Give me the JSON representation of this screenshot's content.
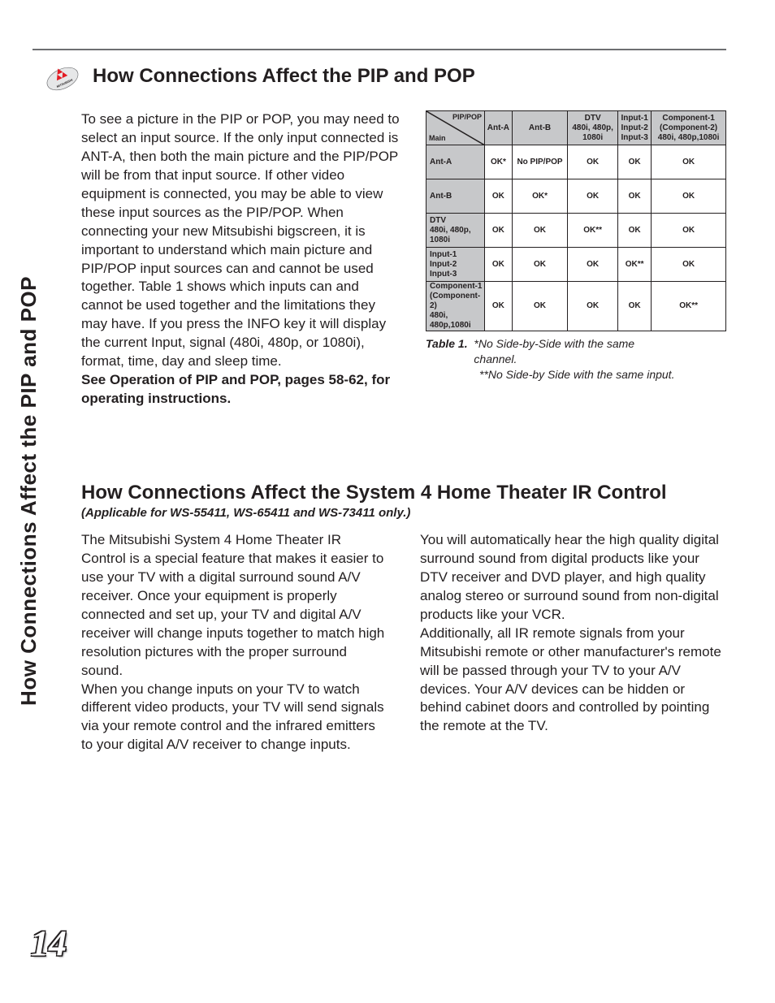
{
  "side_tab": "How Connections Affect the PIP and POP",
  "page_number": "14",
  "section1": {
    "title": "How Connections Affect the PIP and POP",
    "body_pre": "To see a picture in the PIP or POP, you may need to select an input source.  If the only input connected is ANT-A, then both the main picture and the PIP/POP will be from that input source.  If other video equipment is connected, you may be able to view these input sources as the PIP/POP.  When connecting your new Mitsubishi bigscreen, it is important to understand which main picture and PIP/POP input sources can and cannot be used together.  Table 1 shows which inputs can and cannot be used together and the limitations they may have.  If you press the INFO key it will display the current Input, signal (480i, 480p, or 1080i), format, time, day and sleep time.",
    "body_bold": "See Operation of PIP and POP, pages 58-62, for operating instructions."
  },
  "table": {
    "diag_top": "PIP/POP",
    "diag_bot": "Main",
    "colheads": [
      "Ant-A",
      "Ant-B",
      "DTV\n480i, 480p,\n1080i",
      "Input-1\nInput-2\nInput-3",
      "Component-1\n(Component-2)\n480i, 480p,1080i"
    ],
    "rows": [
      {
        "head": "Ant-A",
        "cells": [
          "OK*",
          "No PIP/POP",
          "OK",
          "OK",
          "OK"
        ]
      },
      {
        "head": "Ant-B",
        "cells": [
          "OK",
          "OK*",
          "OK",
          "OK",
          "OK"
        ]
      },
      {
        "head": "DTV\n480i, 480p, 1080i",
        "cells": [
          "OK",
          "OK",
          "OK**",
          "OK",
          "OK"
        ]
      },
      {
        "head": "Input-1\nInput-2\nInput-3",
        "cells": [
          "OK",
          "OK",
          "OK",
          "OK**",
          "OK"
        ]
      },
      {
        "head": "Component-1\n(Component-2)\n480i, 480p,1080i",
        "cells": [
          "OK",
          "OK",
          "OK",
          "OK",
          "OK**"
        ]
      }
    ],
    "caption_label": "Table 1.",
    "caption_line1": "*No Side-by-Side with the same channel.",
    "caption_line2": "**No Side-by Side with the same input.",
    "border_color": "#231f20",
    "header_bg": "#c7c8ca"
  },
  "section2": {
    "title": "How Connections Affect the System 4 Home Theater IR Control",
    "subtitle": "(Applicable for WS-55411, WS-65411 and WS-73411 only.)",
    "col1": "The Mitsubishi System 4 Home Theater IR Control is a special feature that makes it easier to use your TV with a digital surround sound A/V receiver.  Once your equipment is properly connected and set up, your TV and digital A/V receiver will change inputs together to match high resolution pictures with the proper surround sound.\nWhen you change inputs on your TV to watch different video products, your TV will send signals via your remote control and the infrared emitters to your digital A/V receiver to change inputs.",
    "col2": "You will automatically hear the high quality digital surround sound from digital products like your DTV receiver and DVD player, and high quality analog stereo or surround sound from non-digital products like your VCR.\nAdditionally, all IR remote signals from your Mitsubishi remote or other manufacturer's remote will be passed through your TV to your A/V devices.  Your A/V devices can be hidden or behind cabinet doors and controlled by pointing the remote at the TV."
  },
  "logo_colors": {
    "diamond": "#e31b23",
    "bg": "#ffffff",
    "ring": "#6d6e71"
  }
}
